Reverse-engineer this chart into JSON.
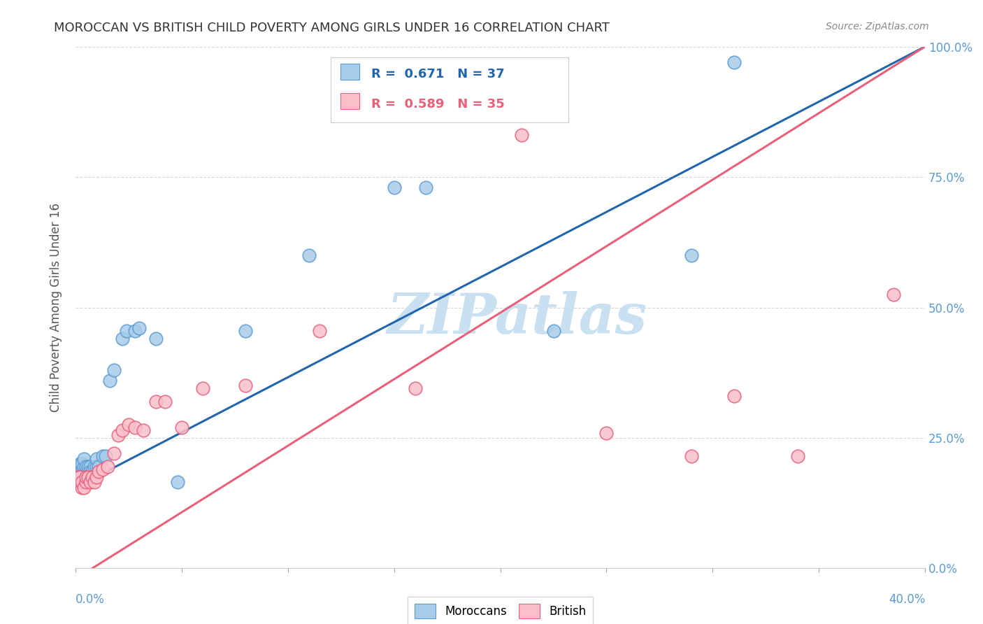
{
  "title": "MOROCCAN VS BRITISH CHILD POVERTY AMONG GIRLS UNDER 16 CORRELATION CHART",
  "source": "Source: ZipAtlas.com",
  "ylabel": "Child Poverty Among Girls Under 16",
  "xlim": [
    0.0,
    0.4
  ],
  "ylim": [
    0.0,
    1.0
  ],
  "yticks": [
    0.0,
    0.25,
    0.5,
    0.75,
    1.0
  ],
  "yticklabels_right": [
    "0.0%",
    "25.0%",
    "50.0%",
    "75.0%",
    "100.0%"
  ],
  "x_left_label": "0.0%",
  "x_right_label": "40.0%",
  "moroccan_R": 0.671,
  "moroccan_N": 37,
  "british_R": 0.589,
  "british_N": 35,
  "moroccan_color": "#a8cce8",
  "british_color": "#f9c0cc",
  "moroccan_edge_color": "#5b9bd5",
  "british_edge_color": "#e8607a",
  "moroccan_line_color": "#2166ac",
  "british_line_color": "#e8607a",
  "watermark": "ZIPatlas",
  "watermark_color": "#c8e0f0",
  "moroccan_line_y0": 0.155,
  "moroccan_line_y1": 1.0,
  "british_line_y0": -0.02,
  "british_line_y1": 1.0,
  "moroccan_x": [
    0.001,
    0.002,
    0.002,
    0.003,
    0.003,
    0.003,
    0.004,
    0.004,
    0.004,
    0.005,
    0.005,
    0.006,
    0.006,
    0.007,
    0.007,
    0.008,
    0.009,
    0.01,
    0.01,
    0.011,
    0.013,
    0.014,
    0.016,
    0.018,
    0.022,
    0.024,
    0.028,
    0.03,
    0.038,
    0.048,
    0.08,
    0.11,
    0.165,
    0.225,
    0.29,
    0.31,
    0.15
  ],
  "moroccan_y": [
    0.195,
    0.2,
    0.185,
    0.195,
    0.185,
    0.2,
    0.185,
    0.195,
    0.21,
    0.185,
    0.195,
    0.185,
    0.195,
    0.195,
    0.185,
    0.185,
    0.195,
    0.195,
    0.21,
    0.195,
    0.215,
    0.215,
    0.36,
    0.38,
    0.44,
    0.455,
    0.455,
    0.46,
    0.44,
    0.165,
    0.455,
    0.6,
    0.73,
    0.455,
    0.6,
    0.97,
    0.73
  ],
  "british_x": [
    0.001,
    0.002,
    0.002,
    0.003,
    0.003,
    0.004,
    0.005,
    0.005,
    0.006,
    0.007,
    0.008,
    0.009,
    0.01,
    0.011,
    0.013,
    0.015,
    0.018,
    0.02,
    0.022,
    0.025,
    0.028,
    0.032,
    0.038,
    0.042,
    0.05,
    0.06,
    0.08,
    0.115,
    0.16,
    0.21,
    0.25,
    0.29,
    0.31,
    0.34,
    0.385
  ],
  "british_y": [
    0.175,
    0.165,
    0.175,
    0.155,
    0.165,
    0.155,
    0.165,
    0.175,
    0.175,
    0.165,
    0.175,
    0.165,
    0.175,
    0.185,
    0.19,
    0.195,
    0.22,
    0.255,
    0.265,
    0.275,
    0.27,
    0.265,
    0.32,
    0.32,
    0.27,
    0.345,
    0.35,
    0.455,
    0.345,
    0.83,
    0.26,
    0.215,
    0.33,
    0.215,
    0.525
  ]
}
